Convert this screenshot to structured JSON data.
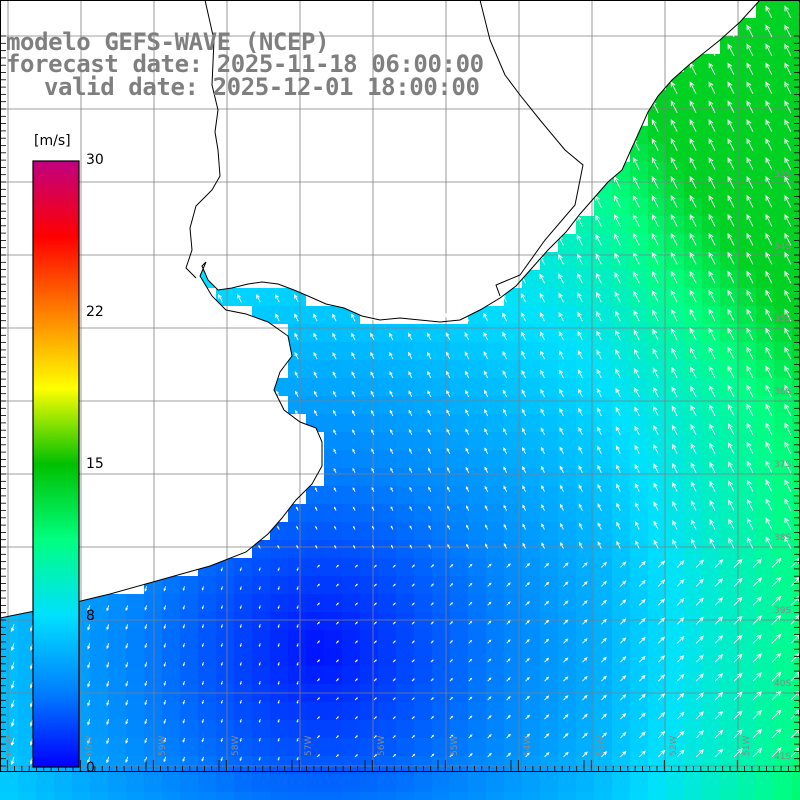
{
  "title": {
    "line1": "modelo GEFS-WAVE (NCEP)",
    "line2": "forecast date: 2025-11-18 06:00:00",
    "line3": "valid date: 2025-12-01 18:00:00"
  },
  "colorbar": {
    "unit": "[m/s]",
    "ticks": [
      "30",
      "22",
      "15",
      "8",
      "0"
    ],
    "min": 0,
    "max": 30,
    "colors": [
      "#0000ff",
      "#0080ff",
      "#00e0ff",
      "#00ff80",
      "#00c000",
      "#ffff00",
      "#ff8000",
      "#ff0000",
      "#c00080"
    ]
  },
  "map": {
    "lon_labels": [
      "61W",
      "60W",
      "59W",
      "58W",
      "57W",
      "56W",
      "55W",
      "54W",
      "53W",
      "52W",
      "51W"
    ],
    "lat_labels": [
      "33S",
      "34S",
      "35S",
      "36S",
      "37S",
      "38S",
      "39S",
      "40S",
      "41S"
    ],
    "land_color": "#ffffff",
    "grid_color": "#808080",
    "arrow_color": "#ffffff"
  }
}
